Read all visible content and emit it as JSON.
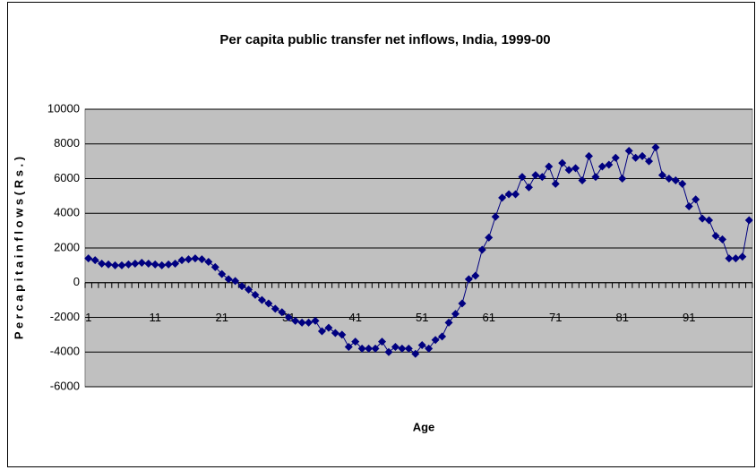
{
  "chart_data": {
    "type": "line",
    "title": "Per capita  public transfer net inflows, India, 1999-00",
    "x_label": "Age",
    "y_label": "P e r  c a p i t a   i n f l o w s   ( R s . )",
    "categories": [
      "1",
      null,
      null,
      null,
      null,
      null,
      null,
      null,
      null,
      null,
      "11",
      null,
      null,
      null,
      null,
      null,
      null,
      null,
      null,
      null,
      "21",
      null,
      null,
      null,
      null,
      null,
      null,
      null,
      null,
      null,
      "31",
      null,
      null,
      null,
      null,
      null,
      null,
      null,
      null,
      null,
      "41",
      null,
      null,
      null,
      null,
      null,
      null,
      null,
      null,
      null,
      "51",
      null,
      null,
      null,
      null,
      null,
      null,
      null,
      null,
      null,
      "61",
      null,
      null,
      null,
      null,
      null,
      null,
      null,
      null,
      null,
      "71",
      null,
      null,
      null,
      null,
      null,
      null,
      null,
      null,
      null,
      "81",
      null,
      null,
      null,
      null,
      null,
      null,
      null,
      null,
      null,
      "91",
      null,
      null,
      null,
      null,
      null,
      null,
      null,
      null,
      null
    ],
    "values": [
      1400,
      1300,
      1100,
      1050,
      1000,
      1000,
      1050,
      1100,
      1150,
      1100,
      1050,
      1000,
      1050,
      1100,
      1300,
      1350,
      1400,
      1350,
      1200,
      900,
      500,
      200,
      100,
      -200,
      -400,
      -700,
      -1000,
      -1200,
      -1500,
      -1700,
      -2000,
      -2200,
      -2300,
      -2300,
      -2200,
      -2800,
      -2600,
      -2900,
      -3000,
      -3700,
      -3400,
      -3800,
      -3800,
      -3800,
      -3400,
      -4000,
      -3700,
      -3800,
      -3800,
      -4100,
      -3600,
      -3800,
      -3300,
      -3100,
      -2300,
      -1800,
      -1200,
      200,
      400,
      1900,
      2600,
      3800,
      4900,
      5100,
      5100,
      6100,
      5500,
      6200,
      6100,
      6700,
      5700,
      6900,
      6500,
      6600,
      5900,
      7300,
      6100,
      6700,
      6800,
      7200,
      6000,
      7600,
      7200,
      7300,
      7000,
      7800,
      6200,
      6000,
      5900,
      5700,
      4400,
      4800,
      3700,
      3600,
      2700,
      2500,
      1400,
      1400,
      1500,
      3600
    ],
    "color": "#000080",
    "ylim": [
      -6000,
      10000
    ],
    "yticks": [
      -6000,
      -4000,
      -2000,
      0,
      2000,
      4000,
      6000,
      8000,
      10000
    ],
    "grid": true,
    "plot_background": "#c0c0c0"
  }
}
